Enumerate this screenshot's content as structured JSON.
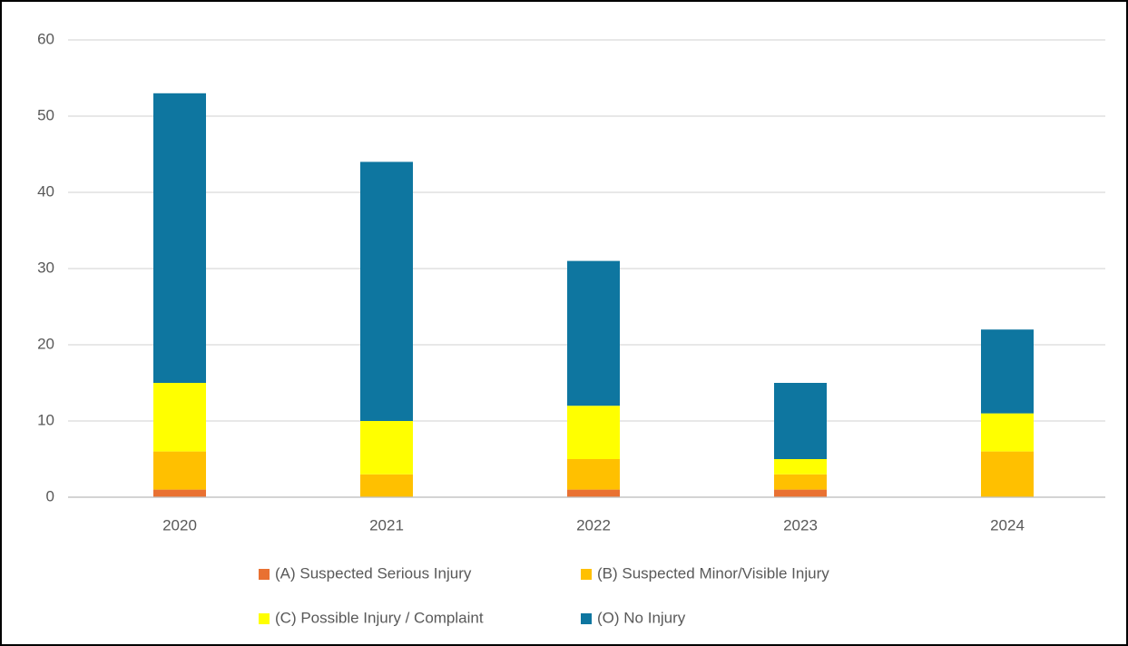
{
  "chart_data": {
    "type": "stacked_bar",
    "categories": [
      "2020",
      "2021",
      "2022",
      "2023",
      "2024"
    ],
    "series": [
      {
        "name": "(A) Suspected Serious Injury",
        "color": "#E97132",
        "values": [
          1,
          0,
          1,
          1,
          0
        ]
      },
      {
        "name": "(B) Suspected Minor/Visible Injury",
        "color": "#FFC000",
        "values": [
          5,
          3,
          4,
          2,
          6
        ]
      },
      {
        "name": "(C) Possible Injury / Complaint",
        "color": "#FFFF00",
        "values": [
          9,
          7,
          7,
          2,
          5
        ]
      },
      {
        "name": "(O) No Injury",
        "color": "#0E76A0",
        "values": [
          38,
          34,
          19,
          10,
          11
        ]
      }
    ],
    "ylim": [
      0,
      60
    ],
    "yticks": [
      0,
      10,
      20,
      30,
      40,
      50,
      60
    ],
    "grid": true,
    "legend": "bottom"
  }
}
